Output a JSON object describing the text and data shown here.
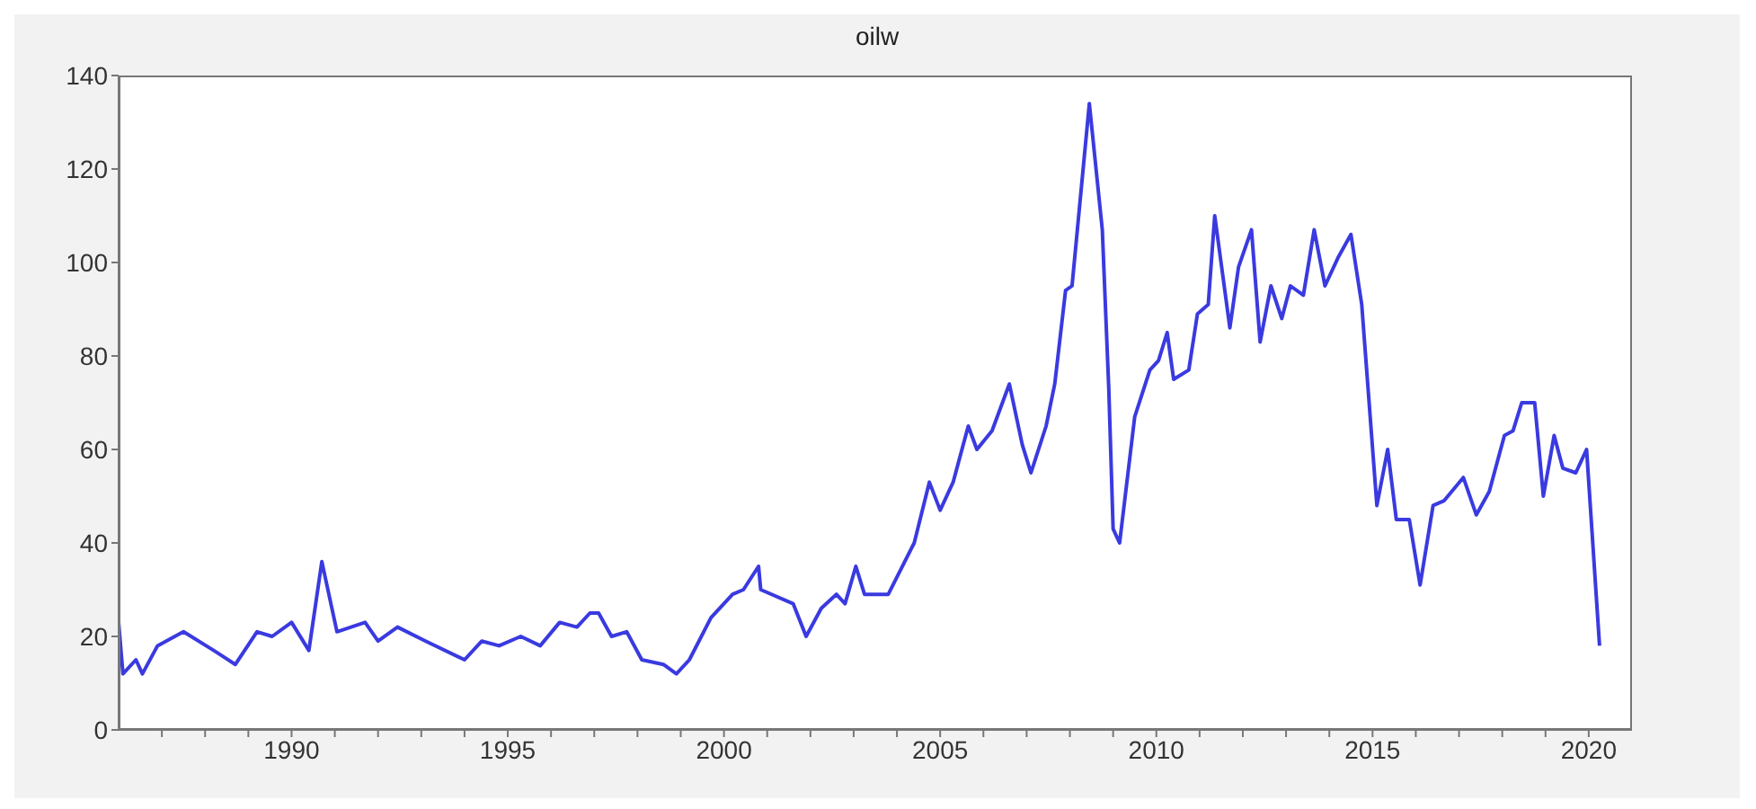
{
  "chart_data": {
    "type": "line",
    "title": "oilw",
    "xlim": [
      1986,
      2021
    ],
    "ylim": [
      0,
      140
    ],
    "yticks": [
      0,
      20,
      40,
      60,
      80,
      100,
      120,
      140
    ],
    "xticks": [
      {
        "value": 1987,
        "label": null
      },
      {
        "value": 1988,
        "label": null
      },
      {
        "value": 1989,
        "label": null
      },
      1990,
      {
        "value": 1991,
        "label": null
      },
      {
        "value": 1992,
        "label": null
      },
      {
        "value": 1993,
        "label": null
      },
      {
        "value": 1994,
        "label": null
      },
      1995,
      {
        "value": 1996,
        "label": null
      },
      {
        "value": 1997,
        "label": null
      },
      {
        "value": 1998,
        "label": null
      },
      {
        "value": 1999,
        "label": null
      },
      2000,
      {
        "value": 2001,
        "label": null
      },
      {
        "value": 2002,
        "label": null
      },
      {
        "value": 2003,
        "label": null
      },
      {
        "value": 2004,
        "label": null
      },
      2005,
      {
        "value": 2006,
        "label": null
      },
      {
        "value": 2007,
        "label": null
      },
      {
        "value": 2008,
        "label": null
      },
      {
        "value": 2009,
        "label": null
      },
      2010,
      {
        "value": 2011,
        "label": null
      },
      {
        "value": 2012,
        "label": null
      },
      {
        "value": 2013,
        "label": null
      },
      {
        "value": 2014,
        "label": null
      },
      2015,
      {
        "value": 2016,
        "label": null
      },
      {
        "value": 2017,
        "label": null
      },
      {
        "value": 2018,
        "label": null
      },
      {
        "value": 2019,
        "label": null
      },
      2020
    ],
    "grid": false,
    "legend": false,
    "marker": "none",
    "line_style": "solid",
    "series": [
      {
        "color": "#3a3ae0",
        "x": [
          1986.0,
          1986.1,
          1986.4,
          1986.55,
          1986.9,
          1987.5,
          1988.2,
          1988.7,
          1989.2,
          1989.55,
          1990.0,
          1990.4,
          1990.7,
          1991.05,
          1991.7,
          1992.0,
          1992.45,
          1993.1,
          1994.0,
          1994.4,
          1994.8,
          1995.3,
          1995.75,
          1996.2,
          1996.6,
          1996.9,
          1997.1,
          1997.4,
          1997.75,
          1998.1,
          1998.6,
          1998.9,
          1999.2,
          1999.7,
          2000.2,
          2000.45,
          2000.8,
          2000.85,
          2001.6,
          2001.9,
          2002.25,
          2002.6,
          2002.8,
          2003.05,
          2003.25,
          2003.4,
          2003.8,
          2004.4,
          2004.75,
          2005.0,
          2005.3,
          2005.65,
          2005.85,
          2006.2,
          2006.6,
          2006.9,
          2007.1,
          2007.45,
          2007.65,
          2007.9,
          2008.05,
          2008.45,
          2008.75,
          2008.9,
          2009.0,
          2009.15,
          2009.5,
          2009.85,
          2010.05,
          2010.25,
          2010.4,
          2010.75,
          2010.95,
          2011.2,
          2011.35,
          2011.7,
          2011.9,
          2012.2,
          2012.4,
          2012.65,
          2012.9,
          2013.1,
          2013.4,
          2013.65,
          2013.9,
          2014.2,
          2014.5,
          2014.75,
          2015.1,
          2015.35,
          2015.55,
          2015.85,
          2016.1,
          2016.4,
          2016.65,
          2017.1,
          2017.4,
          2017.7,
          2018.05,
          2018.25,
          2018.45,
          2018.75,
          2018.95,
          2019.2,
          2019.4,
          2019.7,
          2019.95,
          2020.25
        ],
        "values": [
          23,
          12,
          15,
          12,
          18,
          21,
          17,
          14,
          21,
          20,
          23,
          17,
          36,
          21,
          23,
          19,
          22,
          19,
          15,
          19,
          18,
          20,
          18,
          23,
          22,
          25,
          25,
          20,
          21,
          15,
          14,
          12,
          15,
          24,
          29,
          30,
          35,
          30,
          27,
          20,
          26,
          29,
          27,
          35,
          29,
          29,
          29,
          40,
          53,
          47,
          53,
          65,
          60,
          64,
          74,
          61,
          55,
          65,
          74,
          94,
          95,
          134,
          107,
          73,
          43,
          40,
          67,
          77,
          79,
          85,
          75,
          77,
          89,
          91,
          110,
          86,
          99,
          107,
          83,
          95,
          88,
          95,
          93,
          107,
          95,
          101,
          106,
          91,
          48,
          60,
          45,
          45,
          31,
          48,
          49,
          54,
          46,
          51,
          63,
          64,
          70,
          70,
          50,
          63,
          56,
          55,
          60,
          18
        ]
      }
    ]
  }
}
